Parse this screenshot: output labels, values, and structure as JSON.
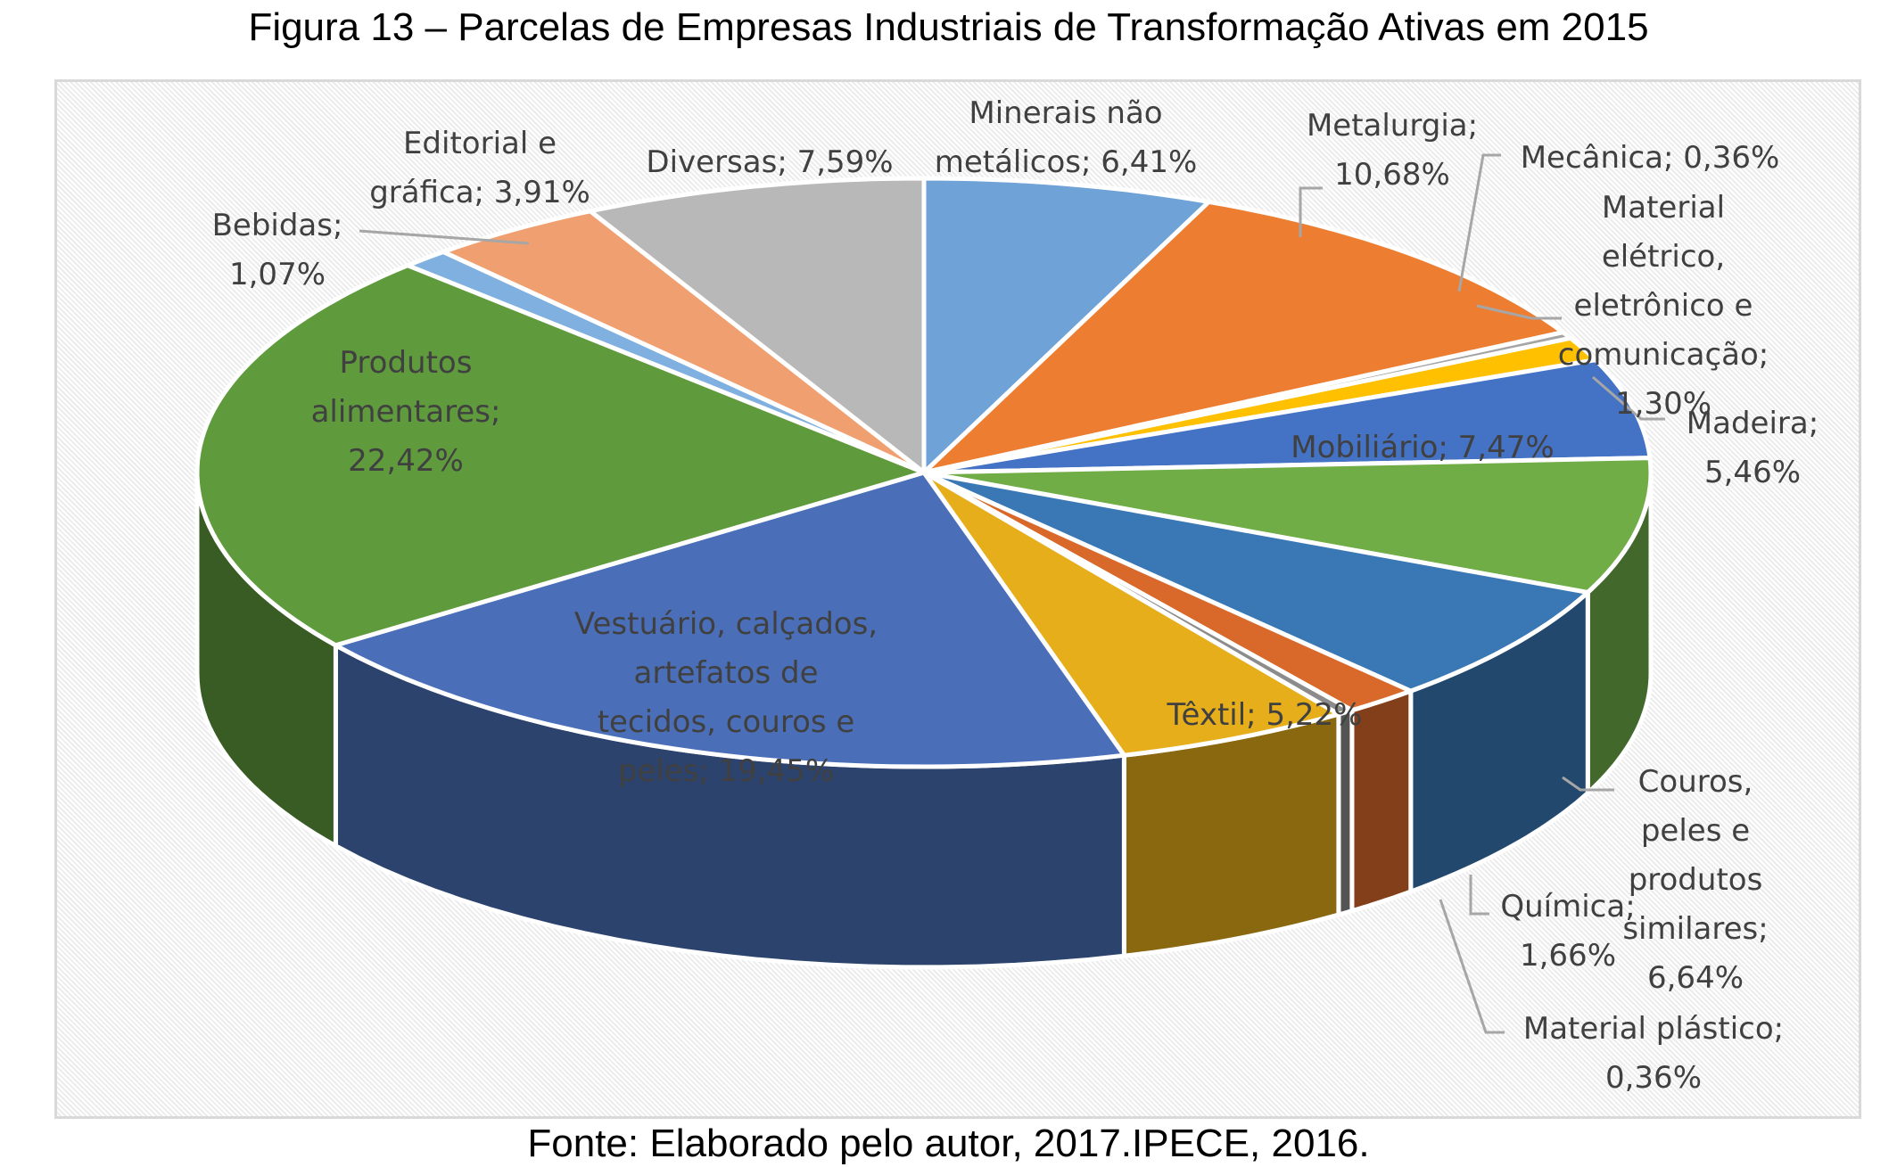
{
  "title": "Figura 13 – Parcelas de Empresas Industriais de Transformação Ativas em 2015",
  "footer": "Fonte: Elaborado pelo autor, 2017.IPECE, 2016.",
  "chart_data": {
    "type": "pie",
    "style": "3d-pie",
    "title": "Figura 13 – Parcelas de Empresas Industriais de Transformação Ativas em 2015",
    "unit": "%",
    "slices": [
      {
        "name": "Minerais não metálicos",
        "value": 6.41,
        "color": "#6fa3d8",
        "lines": [
          "Minerais não",
          "metálicos; 6,41%"
        ]
      },
      {
        "name": "Metalurgia",
        "value": 10.68,
        "color": "#ed7d31",
        "lines": [
          "Metalurgia;",
          "10,68%"
        ]
      },
      {
        "name": "Mecânica",
        "value": 0.36,
        "color": "#a5a5a5",
        "lines": [
          "Mecânica; 0,36%"
        ]
      },
      {
        "name": "Material elétrico, eletrônico e comunicação",
        "value": 1.3,
        "color": "#ffc000",
        "lines": [
          "Material",
          "elétrico,",
          "eletrônico e",
          "comunicação;",
          "1,30%"
        ]
      },
      {
        "name": "Madeira",
        "value": 5.46,
        "color": "#4472c4",
        "lines": [
          "Madeira;",
          "5,46%"
        ]
      },
      {
        "name": "Mobiliário",
        "value": 7.47,
        "color": "#70ad47",
        "lines": [
          "Mobiliário; 7,47%"
        ]
      },
      {
        "name": "Couros, peles e produtos similares",
        "value": 6.64,
        "color": "#3a78b5",
        "lines": [
          "Couros,",
          "peles e",
          "produtos",
          "similares;",
          "6,64%"
        ]
      },
      {
        "name": "Química",
        "value": 1.66,
        "color": "#d9692a",
        "lines": [
          "Química;",
          "1,66%"
        ]
      },
      {
        "name": "Material plástico",
        "value": 0.36,
        "color": "#8c8c8c",
        "lines": [
          "Material plástico;",
          "0,36%"
        ]
      },
      {
        "name": "Têxtil",
        "value": 5.22,
        "color": "#e6ae1a",
        "lines": [
          "Têxtil; 5,22%"
        ]
      },
      {
        "name": "Vestuário, calçados, artefatos de tecidos, couros e peles",
        "value": 19.45,
        "color": "#4a6fb8",
        "lines": [
          "Vestuário, calçados,",
          "artefatos de",
          "tecidos, couros e",
          "peles; 19,45%"
        ]
      },
      {
        "name": "Produtos alimentares",
        "value": 22.42,
        "color": "#5f9a3c",
        "lines": [
          "Produtos",
          "alimentares;",
          "22,42%"
        ]
      },
      {
        "name": "Bebidas",
        "value": 1.07,
        "color": "#7fb0e0",
        "lines": [
          "Bebidas;",
          "1,07%"
        ]
      },
      {
        "name": "Editorial e gráfica",
        "value": 3.91,
        "color": "#f0a070",
        "lines": [
          "Editorial e",
          "gráfica; 3,91%"
        ]
      },
      {
        "name": "Diversas",
        "value": 7.59,
        "color": "#b8b8b8",
        "lines": [
          "Diversas; 7,59%"
        ]
      }
    ]
  }
}
